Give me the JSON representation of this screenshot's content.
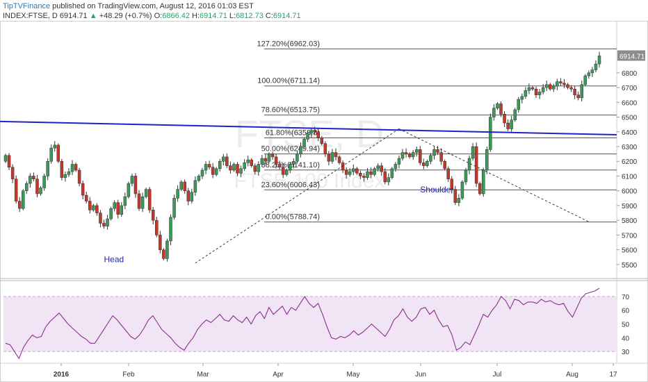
{
  "header": {
    "brand": "TipTVFinance",
    "published": "published on TradingView.com, August 12, 2016 01:03 EST",
    "symbol": "INDEX:FTSE, D",
    "last": "6914.71",
    "change_arrow": "▲",
    "change": "+48.29 (+0.7%)",
    "o_label": "O:",
    "o_value": "6866.42",
    "h_label": "H:",
    "h_value": "6914.71",
    "l_label": "L:",
    "l_value": "6812.73",
    "c_label": "C:",
    "c_value": "6914.71"
  },
  "colors": {
    "up_candle": "#3b9a57",
    "down_candle": "#c0392b",
    "trendline": "#1f22c8",
    "fib_line": "#555555",
    "rsi_line": "#8a2f8f",
    "rsi_band": "#f1e4f5",
    "annotation": "#2323a8",
    "price_tag": "#8c8c8c"
  },
  "chart_data": [
    {
      "type": "candlestick",
      "symbol": "FTSE",
      "watermark": "FTSE, D",
      "watermark_sub": "FTSE 100 Index",
      "y_ticks": [
        5500,
        5600,
        5700,
        5800,
        5900,
        6000,
        6100,
        6200,
        6300,
        6400,
        6500,
        6600,
        6700,
        6800
      ],
      "ylim": [
        5410,
        7030
      ],
      "x_labels": [
        "2016",
        "Feb",
        "Mar",
        "Apr",
        "May",
        "Jun",
        "Jul",
        "Aug",
        "17"
      ],
      "last_price_tag": "6914.71",
      "fib_levels": [
        {
          "label": "127.20%(6962.03)",
          "value": 6962.03
        },
        {
          "label": "100.00%(6711.14)",
          "value": 6711.14
        },
        {
          "label": "78.60%(6513.75)",
          "value": 6513.75
        },
        {
          "label": "61.80%(6358.8)",
          "value": 6358.8
        },
        {
          "label": "50.00%(6249.94)",
          "value": 6249.94
        },
        {
          "label": "38.20%(6141.10)",
          "value": 6141.1
        },
        {
          "label": "23.60%(6006.43)",
          "value": 6006.43
        },
        {
          "label": "0.00%(5788.74)",
          "value": 5788.74
        }
      ],
      "annotations": [
        {
          "text": "Head",
          "x": 28,
          "y": 5515
        },
        {
          "text": "Shoulder",
          "x": 118,
          "y": 5990
        }
      ],
      "neckline": {
        "start": [
          0,
          6470
        ],
        "end": [
          213,
          6380
        ]
      },
      "dashed_lines": [
        {
          "from": [
            54,
            5510
          ],
          "to": [
            112,
            6420
          ]
        },
        {
          "from": [
            112,
            6420
          ],
          "to": [
            166,
            5790
          ]
        }
      ],
      "closes": [
        6240,
        6160,
        6080,
        5930,
        5880,
        6000,
        6050,
        6100,
        6080,
        5980,
        6020,
        6100,
        6200,
        6290,
        6310,
        6200,
        6090,
        6110,
        6130,
        6180,
        6140,
        6050,
        5970,
        5930,
        5870,
        5900,
        5850,
        5780,
        5760,
        5810,
        5880,
        5920,
        5840,
        5900,
        5960,
        6050,
        6100,
        5980,
        5880,
        5960,
        6010,
        5870,
        5800,
        5700,
        5600,
        5540,
        5660,
        5820,
        5950,
        6010,
        6060,
        6000,
        5930,
        5990,
        6070,
        6100,
        6140,
        6180,
        6160,
        6110,
        6150,
        6200,
        6230,
        6170,
        6140,
        6180,
        6120,
        6150,
        6190,
        6210,
        6170,
        6130,
        6180,
        6220,
        6200,
        6250,
        6230,
        6180,
        6160,
        6110,
        6140,
        6180,
        6200,
        6250,
        6300,
        6350,
        6390,
        6410,
        6400,
        6360,
        6320,
        6250,
        6200,
        6260,
        6230,
        6190,
        6140,
        6110,
        6130,
        6150,
        6120,
        6100,
        6090,
        6130,
        6110,
        6150,
        6170,
        6130,
        6060,
        6090,
        6150,
        6180,
        6220,
        6260,
        6250,
        6230,
        6260,
        6280,
        6190,
        6170,
        6200,
        6240,
        6280,
        6260,
        6200,
        6150,
        6080,
        6010,
        5920,
        5950,
        6060,
        6140,
        6220,
        6300,
        6050,
        5980,
        6140,
        6280,
        6500,
        6560,
        6590,
        6520,
        6460,
        6420,
        6480,
        6550,
        6620,
        6640,
        6680,
        6700,
        6690,
        6650,
        6670,
        6700,
        6720,
        6690,
        6710,
        6740,
        6730,
        6720,
        6700,
        6690,
        6650,
        6630,
        6720,
        6780,
        6800,
        6820,
        6860,
        6914.71
      ]
    },
    {
      "type": "line",
      "name": "RSI",
      "y_ticks": [
        30,
        40,
        50,
        60,
        70
      ],
      "ylim": [
        22,
        76
      ],
      "band": [
        30,
        70
      ],
      "values": [
        36,
        35,
        30,
        25,
        33,
        38,
        42,
        40,
        41,
        48,
        52,
        55,
        58,
        54,
        50,
        47,
        44,
        41,
        39,
        36,
        36,
        41,
        46,
        51,
        56,
        53,
        49,
        45,
        41,
        39,
        42,
        47,
        53,
        56,
        51,
        46,
        43,
        40,
        36,
        33,
        31,
        36,
        40,
        46,
        50,
        53,
        51,
        54,
        57,
        53,
        52,
        56,
        53,
        51,
        55,
        50,
        56,
        59,
        54,
        62,
        57,
        60,
        63,
        57,
        62,
        60,
        65,
        70,
        65,
        62,
        65,
        57,
        48,
        40,
        39,
        41,
        40,
        42,
        45,
        42,
        44,
        47,
        50,
        47,
        44,
        41,
        46,
        53,
        56,
        61,
        55,
        52,
        55,
        61,
        62,
        57,
        60,
        53,
        48,
        49,
        42,
        31,
        33,
        37,
        35,
        42,
        49,
        57,
        55,
        60,
        64,
        70,
        67,
        61,
        68,
        67,
        64,
        66,
        66,
        65,
        68,
        66,
        67,
        65,
        64,
        65,
        59,
        55,
        62,
        69,
        72,
        73,
        74,
        76
      ]
    }
  ]
}
